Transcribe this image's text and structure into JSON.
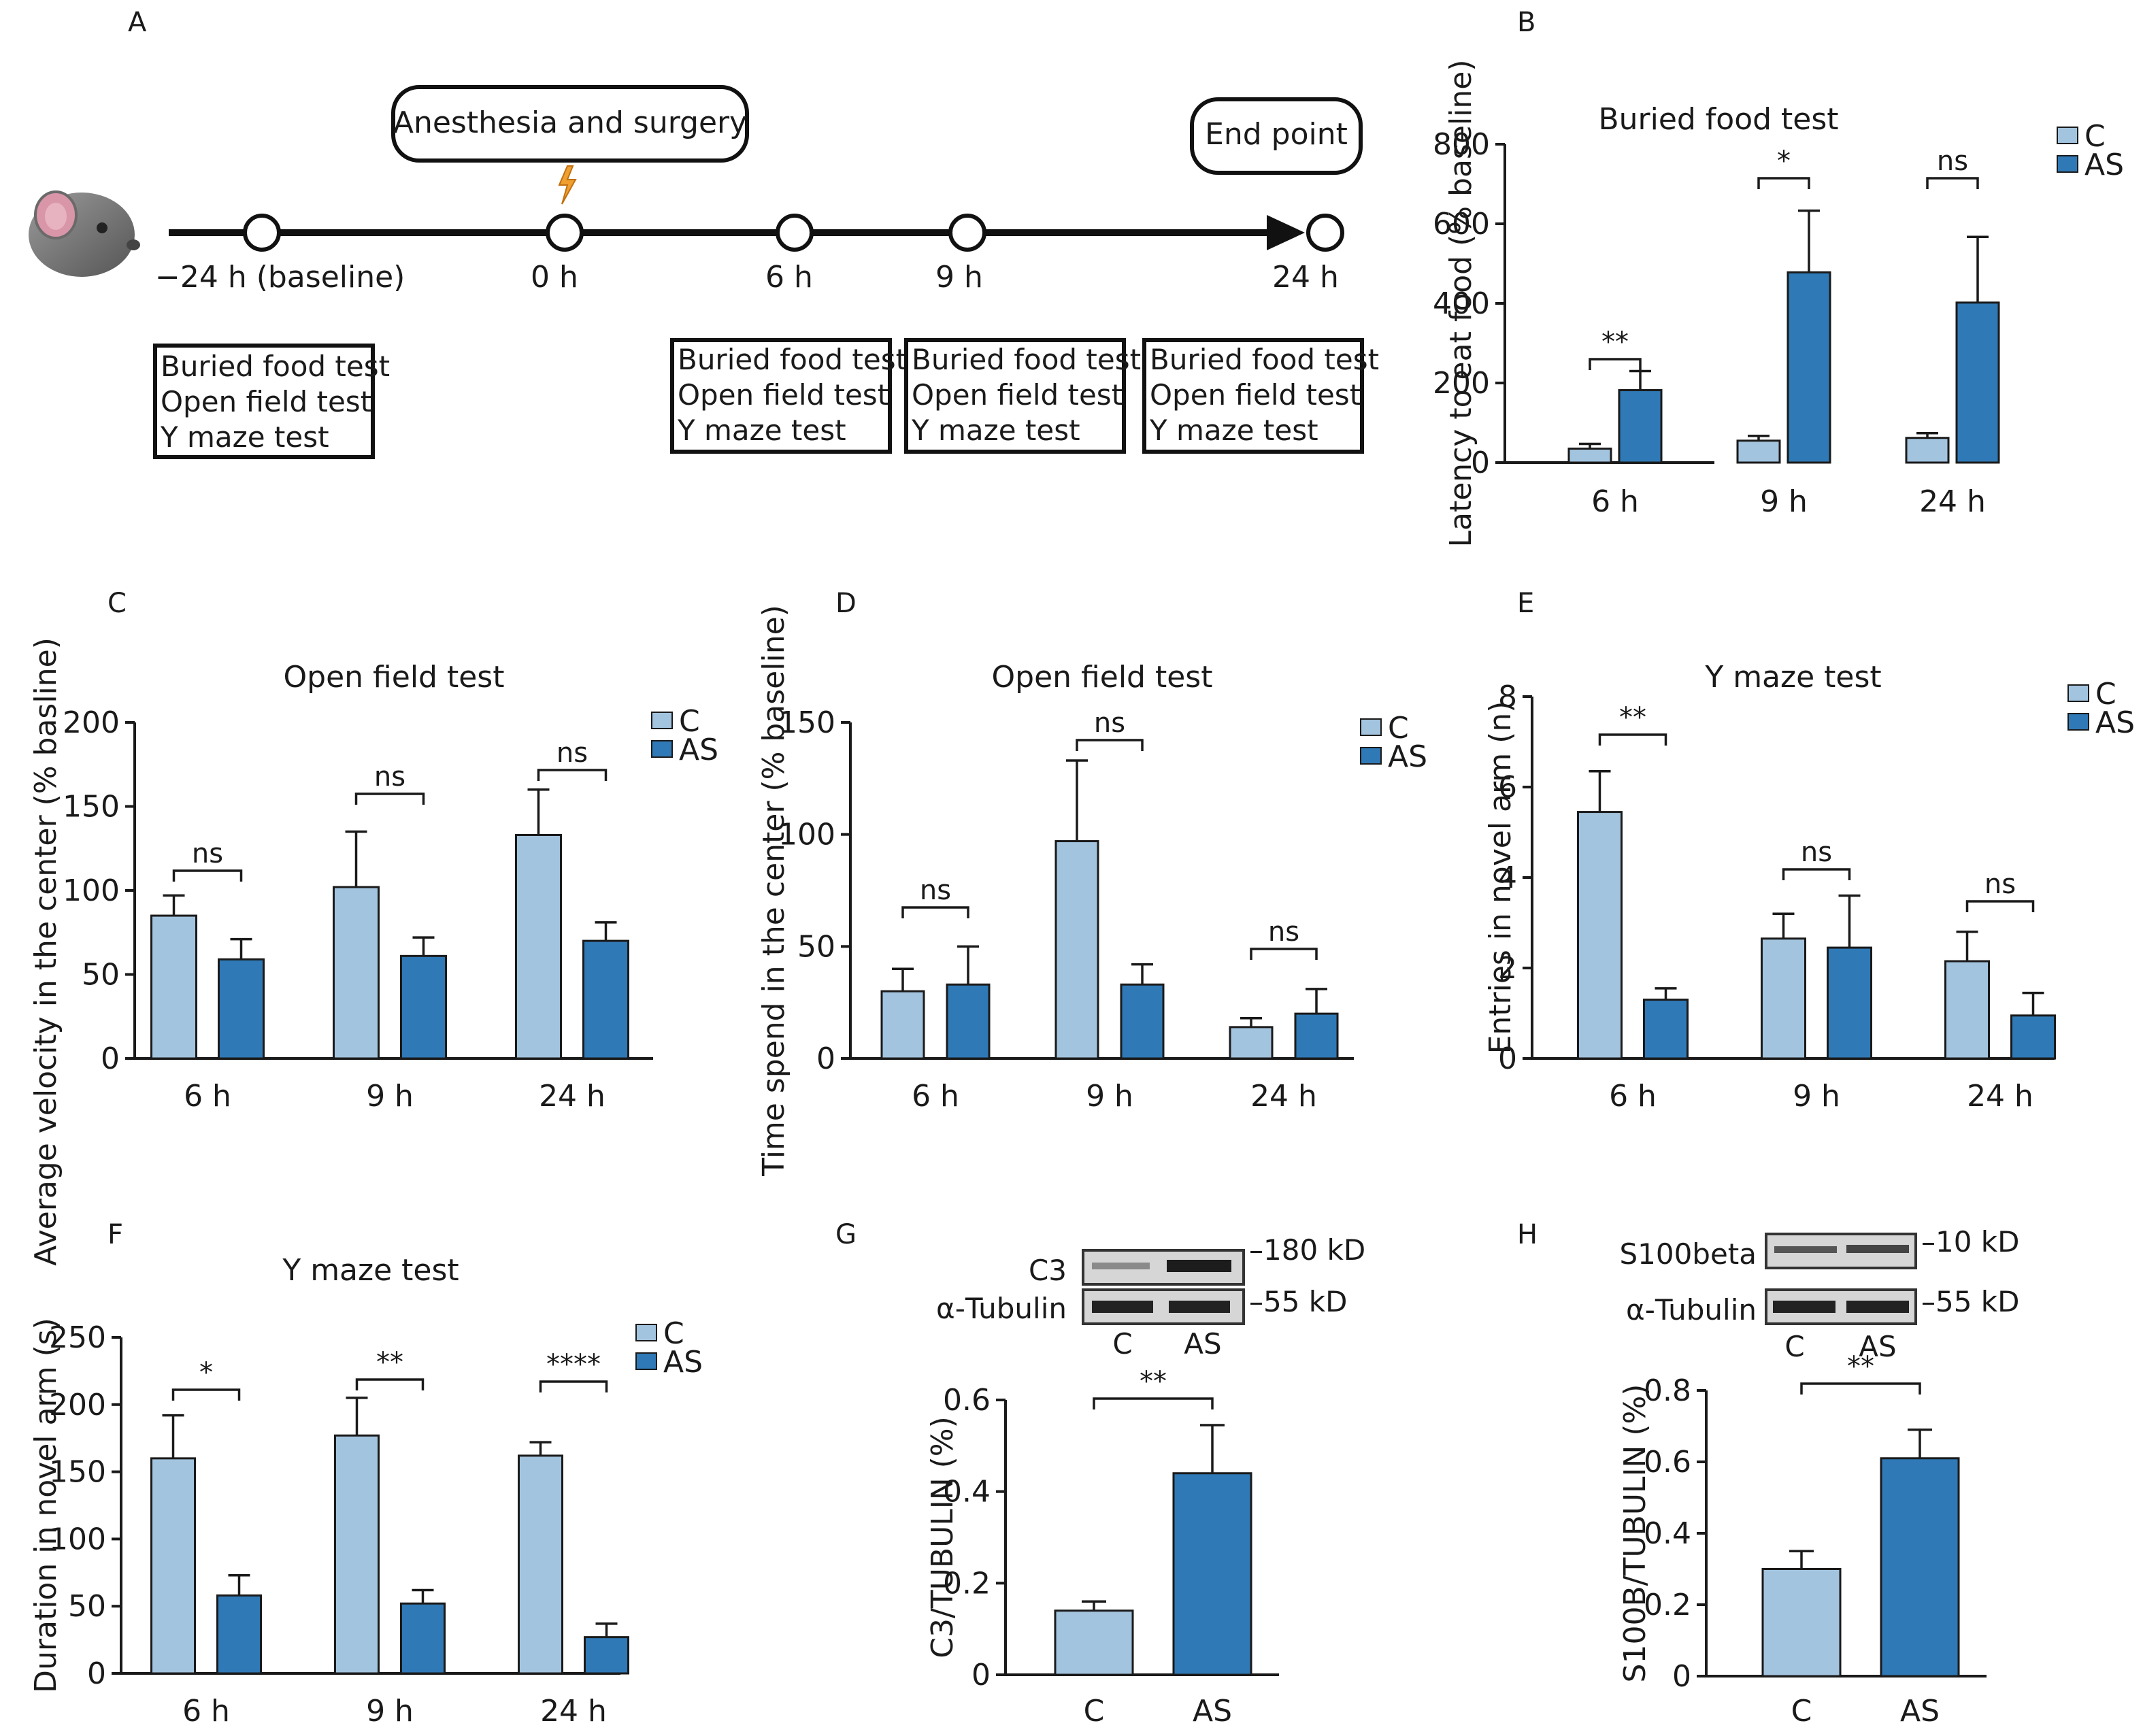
{
  "colors": {
    "c": "#a3c4df",
    "as": "#2f79b6",
    "axis": "#1a1a1a"
  },
  "panel_labels": [
    "A",
    "B",
    "C",
    "D",
    "E",
    "F",
    "G",
    "H"
  ],
  "timeline": {
    "icon": "mouse-icon",
    "marker_icon": "lightning-icon",
    "surgery_label": "Anesthesia and surgery",
    "end_label": "End point",
    "time_points": [
      "−24 h (baseline)",
      "0 h",
      "6 h",
      "9 h",
      "24 h"
    ],
    "test_boxes": [
      [
        "Buried food test",
        "Open field test",
        "Y maze test"
      ],
      [
        "Buried food test",
        "Open field test",
        "Y maze test"
      ],
      [
        "Buried food test",
        "Open field test",
        "Y maze test"
      ],
      [
        "Buried food test",
        "Open field test",
        "Y maze test"
      ]
    ]
  },
  "chart_data": [
    {
      "panel": "B",
      "type": "bar",
      "title": "Buried food test",
      "xlabel": "",
      "ylabel": "Latency to eat food (% baseline)",
      "categories": [
        "6 h",
        "9 h",
        "24 h"
      ],
      "ylim": [
        0,
        800
      ],
      "yticks": [
        "0",
        "200",
        "400",
        "600",
        "800"
      ],
      "ytick_values": [
        0,
        200,
        400,
        600,
        800
      ],
      "legend": [
        "C",
        "AS"
      ],
      "legend_position": "top-right",
      "grid": false,
      "series": [
        {
          "name": "C",
          "values": [
            35,
            55,
            62
          ],
          "errors": [
            12,
            12,
            12
          ]
        },
        {
          "name": "AS",
          "values": [
            182,
            478,
            402
          ],
          "errors": [
            48,
            155,
            165
          ]
        }
      ],
      "significance": [
        "**",
        "*",
        "ns"
      ]
    },
    {
      "panel": "C",
      "type": "bar",
      "title": "Open field test",
      "xlabel": "",
      "ylabel": "Average velocity  in the center (% basline)",
      "categories": [
        "6 h",
        "9 h",
        "24 h"
      ],
      "ylim": [
        0,
        200
      ],
      "yticks": [
        "0",
        "50",
        "100",
        "150",
        "200"
      ],
      "ytick_values": [
        0,
        50,
        100,
        150,
        200
      ],
      "legend": [
        "C",
        "AS"
      ],
      "legend_position": "top-right",
      "grid": false,
      "series": [
        {
          "name": "C",
          "values": [
            85,
            102,
            133
          ],
          "errors": [
            12,
            33,
            27
          ]
        },
        {
          "name": "AS",
          "values": [
            59,
            61,
            70
          ],
          "errors": [
            12,
            11,
            11
          ]
        }
      ],
      "significance": [
        "ns",
        "ns",
        "ns"
      ]
    },
    {
      "panel": "D",
      "type": "bar",
      "title": "Open field test",
      "xlabel": "",
      "ylabel": "Time spend in the center (% baseline)",
      "categories": [
        "6 h",
        "9 h",
        "24 h"
      ],
      "ylim": [
        0,
        150
      ],
      "yticks": [
        "0",
        "50",
        "100",
        "150"
      ],
      "ytick_values": [
        0,
        50,
        100,
        150
      ],
      "legend": [
        "C",
        "AS"
      ],
      "legend_position": "top-right",
      "grid": false,
      "series": [
        {
          "name": "C",
          "values": [
            30,
            97,
            14
          ],
          "errors": [
            10,
            36,
            4
          ]
        },
        {
          "name": "AS",
          "values": [
            33,
            33,
            20
          ],
          "errors": [
            17,
            9,
            11
          ]
        }
      ],
      "significance": [
        "ns",
        "ns",
        "ns"
      ]
    },
    {
      "panel": "E",
      "type": "bar",
      "title": "Y maze test",
      "xlabel": "",
      "ylabel": "Entries in novel arm (n)",
      "categories": [
        "6 h",
        "9 h",
        "24 h"
      ],
      "ylim": [
        0,
        8
      ],
      "yticks": [
        "0",
        "2",
        "4",
        "6",
        "8"
      ],
      "ytick_values": [
        0,
        2,
        4,
        6,
        8
      ],
      "legend": [
        "C",
        "AS"
      ],
      "legend_position": "top-right",
      "grid": false,
      "series": [
        {
          "name": "C",
          "values": [
            5.45,
            2.65,
            2.15
          ],
          "errors": [
            0.9,
            0.55,
            0.65
          ]
        },
        {
          "name": "AS",
          "values": [
            1.3,
            2.45,
            0.95
          ],
          "errors": [
            0.25,
            1.15,
            0.5
          ]
        }
      ],
      "significance": [
        "**",
        "ns",
        "ns"
      ]
    },
    {
      "panel": "F",
      "type": "bar",
      "title": "Y maze test",
      "xlabel": "",
      "ylabel": "Duration in novel arm (s)",
      "categories": [
        "6 h",
        "9 h",
        "24 h"
      ],
      "ylim": [
        0,
        250
      ],
      "yticks": [
        "0",
        "50",
        "100",
        "150",
        "200",
        "250"
      ],
      "ytick_values": [
        0,
        50,
        100,
        150,
        200,
        250
      ],
      "legend": [
        "C",
        "AS"
      ],
      "legend_position": "top-right",
      "grid": false,
      "series": [
        {
          "name": "C",
          "values": [
            160,
            177,
            162
          ],
          "errors": [
            32,
            28,
            10
          ]
        },
        {
          "name": "AS",
          "values": [
            58,
            52,
            27
          ],
          "errors": [
            15,
            10,
            10
          ]
        }
      ],
      "significance": [
        "*",
        "**",
        "****"
      ]
    },
    {
      "panel": "G",
      "type": "bar",
      "title": "",
      "xlabel": "",
      "ylabel": "C3/TUBULIN (%)",
      "categories": [
        "C",
        "AS"
      ],
      "ylim": [
        0,
        0.6
      ],
      "yticks": [
        "0",
        "0.2",
        "0.4",
        "0.6"
      ],
      "ytick_values": [
        0,
        0.2,
        0.4,
        0.6
      ],
      "grid": false,
      "values": [
        0.14,
        0.44
      ],
      "errors": [
        0.02,
        0.105
      ],
      "significance": [
        "**"
      ],
      "blot": {
        "top_label": "C3",
        "bottom_label": "α-Tubulin",
        "top_kd": "–180 kD",
        "bottom_kd": "–55 kD",
        "lanes": [
          "C",
          "AS"
        ]
      }
    },
    {
      "panel": "H",
      "type": "bar",
      "title": "",
      "xlabel": "",
      "ylabel": "S100B/TUBULIN (%)",
      "categories": [
        "C",
        "AS"
      ],
      "ylim": [
        0,
        0.8
      ],
      "yticks": [
        "0",
        "0.2",
        "0.4",
        "0.6",
        "0.8"
      ],
      "ytick_values": [
        0,
        0.2,
        0.4,
        0.6,
        0.8
      ],
      "grid": false,
      "values": [
        0.3,
        0.61
      ],
      "errors": [
        0.05,
        0.08
      ],
      "significance": [
        "**"
      ],
      "blot": {
        "top_label": "S100beta",
        "bottom_label": "α-Tubulin",
        "top_kd": "–10 kD",
        "bottom_kd": "–55 kD",
        "lanes": [
          "C",
          "AS"
        ]
      }
    }
  ]
}
